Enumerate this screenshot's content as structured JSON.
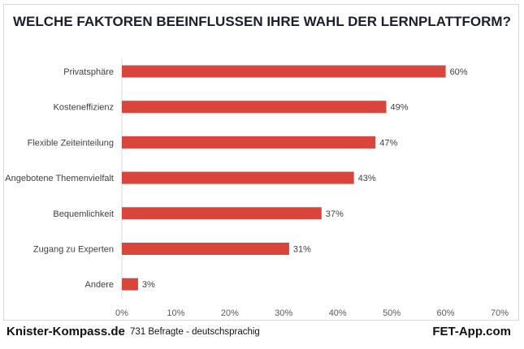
{
  "chart_data": {
    "type": "bar",
    "orientation": "horizontal",
    "title": "WELCHE FAKTOREN BEEINFLUSSEN IHRE WAHL DER LERNPLATTFORM?",
    "categories": [
      "Privatsphäre",
      "Kosteneffizienz",
      "Flexible Zeiteinteilung",
      "Angebotene Themenvielfalt",
      "Bequemlichkeit",
      "Zugang zu Experten",
      "Andere"
    ],
    "values": [
      60,
      49,
      47,
      43,
      37,
      31,
      3
    ],
    "data_labels": [
      "60%",
      "49%",
      "47%",
      "43%",
      "37%",
      "31%",
      "3%"
    ],
    "xlim": [
      0,
      70
    ],
    "x_ticks": [
      "0%",
      "10%",
      "20%",
      "30%",
      "40%",
      "50%",
      "60%",
      "70%"
    ],
    "grid": false,
    "bar_color": "#d9443b"
  },
  "footer": {
    "left": "Knister-Kompass.de",
    "middle": "731 Befragte - deutschsprachig",
    "right": "FET-App.com"
  }
}
